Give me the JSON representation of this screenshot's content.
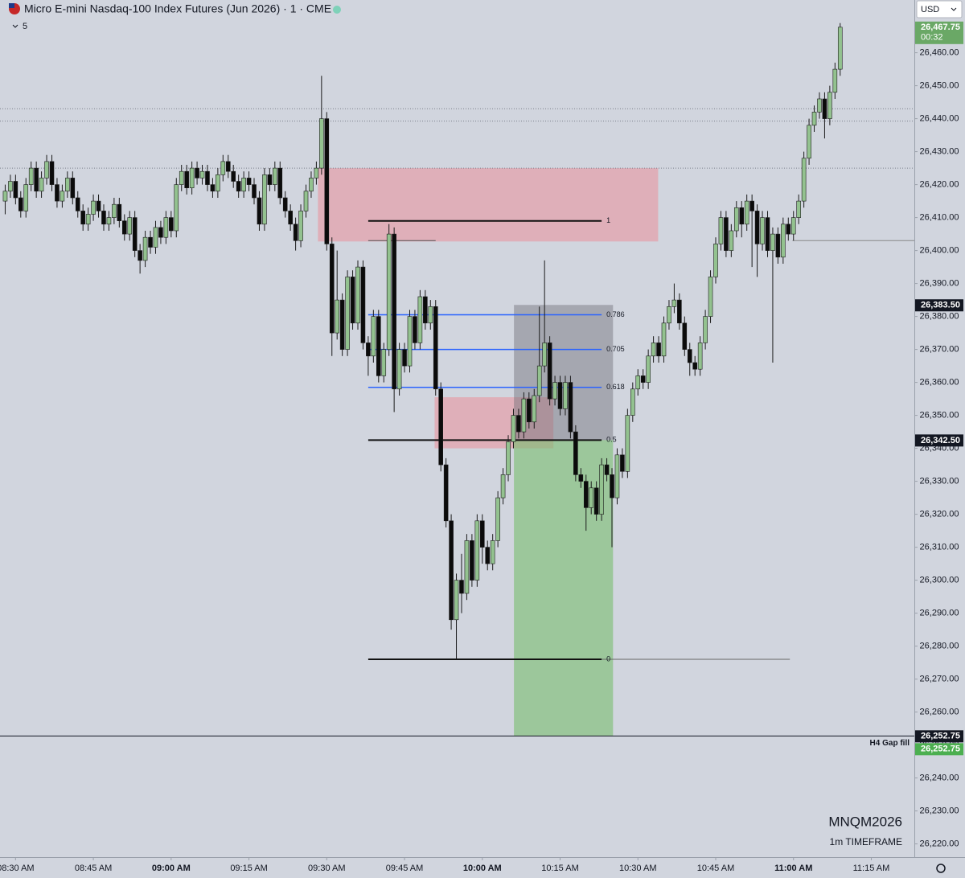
{
  "chart_data": {
    "type": "candlestick",
    "title": "Micro E-mini Nasdaq-100 Index Futures (Jun 2026) · 1 · CME",
    "indicator_count": "5",
    "currency": "USD",
    "symbol": "MNQM2026",
    "timeframe": "1m TIMEFRAME",
    "up_color": "#93c28f",
    "down_color": "#0b0b0b",
    "xlim": [
      507,
      683.3
    ],
    "ylim": [
      26216,
      26476
    ],
    "xticks": [
      {
        "value": 510,
        "label": "08:30 AM"
      },
      {
        "value": 525,
        "label": "08:45 AM"
      },
      {
        "value": 540,
        "label": "09:00 AM"
      },
      {
        "value": 555,
        "label": "09:15 AM"
      },
      {
        "value": 570,
        "label": "09:30 AM"
      },
      {
        "value": 585,
        "label": "09:45 AM"
      },
      {
        "value": 600,
        "label": "10:00 AM"
      },
      {
        "value": 615,
        "label": "10:15 AM"
      },
      {
        "value": 630,
        "label": "10:30 AM"
      },
      {
        "value": 645,
        "label": "10:45 AM"
      },
      {
        "value": 660,
        "label": "11:00 AM"
      },
      {
        "value": 675,
        "label": "11:15 AM"
      }
    ],
    "yticks": [
      {
        "value": 26220,
        "label": "26,220.00"
      },
      {
        "value": 26230,
        "label": "26,230.00"
      },
      {
        "value": 26240,
        "label": "26,240.00"
      },
      {
        "value": 26250,
        "label": "26,250.00"
      },
      {
        "value": 26260,
        "label": "26,260.00"
      },
      {
        "value": 26270,
        "label": "26,270.00"
      },
      {
        "value": 26280,
        "label": "26,280.00"
      },
      {
        "value": 26290,
        "label": "26,290.00"
      },
      {
        "value": 26300,
        "label": "26,300.00"
      },
      {
        "value": 26310,
        "label": "26,310.00"
      },
      {
        "value": 26320,
        "label": "26,320.00"
      },
      {
        "value": 26330,
        "label": "26,330.00"
      },
      {
        "value": 26340,
        "label": "26,340.00"
      },
      {
        "value": 26350,
        "label": "26,350.00"
      },
      {
        "value": 26360,
        "label": "26,360.00"
      },
      {
        "value": 26370,
        "label": "26,370.00"
      },
      {
        "value": 26380,
        "label": "26,380.00"
      },
      {
        "value": 26390,
        "label": "26,390.00"
      },
      {
        "value": 26400,
        "label": "26,400.00"
      },
      {
        "value": 26410,
        "label": "26,410.00"
      },
      {
        "value": 26420,
        "label": "26,420.00"
      },
      {
        "value": 26430,
        "label": "26,430.00"
      },
      {
        "value": 26440,
        "label": "26,440.00"
      },
      {
        "value": 26450,
        "label": "26,450.00"
      },
      {
        "value": 26460,
        "label": "26,460.00"
      }
    ],
    "zones": [
      {
        "top": 26425,
        "bottom": 26402.75,
        "x_start": 568.3,
        "x_end": 633.9,
        "color": "rgba(232,150,160,0.6)"
      },
      {
        "top": 26355.5,
        "bottom": 26340,
        "x_start": 590.8,
        "x_end": 613.7,
        "color": "rgba(232,150,160,0.6)"
      },
      {
        "top": 26383.5,
        "bottom": 26342.5,
        "x_start": 606.1,
        "x_end": 625.2,
        "color": "rgba(110,110,120,0.45)"
      },
      {
        "top": 26342.5,
        "bottom": 26252.75,
        "x_start": 606.1,
        "x_end": 625.2,
        "color": "rgba(120,190,110,0.6)"
      }
    ],
    "dotted_lines": [
      26443,
      26439.25,
      26425
    ],
    "lines": [
      {
        "value": 26403,
        "x_start": 578,
        "x_end": 591,
        "color": "#555"
      },
      {
        "value": 26403,
        "x_start": 659.8,
        "x_end": 683.3,
        "color": "#888"
      },
      {
        "value": 26276,
        "x_start": 623,
        "x_end": 659.3,
        "color": "#666"
      }
    ],
    "fib": {
      "x_start": 578,
      "x_end": 623,
      "levels": [
        {
          "label": "1",
          "value": 26409,
          "color": "#111"
        },
        {
          "label": "0.786",
          "value": 26380.5,
          "color": "#2962ff"
        },
        {
          "label": "0.705",
          "value": 26370,
          "color": "#2962ff"
        },
        {
          "label": "0.618",
          "value": 26358.5,
          "color": "#2962ff"
        },
        {
          "label": "0.5",
          "value": 26342.5,
          "color": "#111"
        },
        {
          "label": "0",
          "value": 26276,
          "color": "#111"
        }
      ]
    },
    "gap_line": {
      "value": 26252.75,
      "label": "H4 Gap fill"
    },
    "price_tags": [
      {
        "value": 26467.75,
        "label": "26,467.75",
        "countdown": "00:32",
        "color": "#6aa866"
      },
      {
        "value": 26383.5,
        "label": "26,383.50",
        "color": "#131722"
      },
      {
        "value": 26342.5,
        "label": "26,342.50",
        "color": "#131722"
      },
      {
        "value": 26252.75,
        "label": "26,252.75",
        "color": "#131722"
      },
      {
        "value": 26252.75,
        "label": "26,252.75",
        "color": "#4caf50"
      }
    ],
    "candles": [
      [
        508,
        26415,
        26420,
        26411,
        26418
      ],
      [
        509,
        26418,
        26423,
        26416,
        26421
      ],
      [
        510,
        26421,
        26423,
        26414,
        26416
      ],
      [
        511,
        26416,
        26418,
        26410,
        26412
      ],
      [
        512,
        26412,
        26422,
        26410,
        26420
      ],
      [
        513,
        26420,
        26427,
        26418,
        26425
      ],
      [
        514,
        26425,
        26427,
        26416,
        26418
      ],
      [
        515,
        26418,
        26424,
        26416,
        26422
      ],
      [
        516,
        26422,
        26429,
        26420,
        26427
      ],
      [
        517,
        26427,
        26429,
        26418,
        26420
      ],
      [
        518,
        26420,
        26422,
        26413,
        26415
      ],
      [
        519,
        26415,
        26420,
        26413,
        26418
      ],
      [
        520,
        26418,
        26424,
        26416,
        26422
      ],
      [
        521,
        26422,
        26424,
        26414,
        26416
      ],
      [
        522,
        26416,
        26418,
        26410,
        26412
      ],
      [
        523,
        26412,
        26414,
        26406,
        26408
      ],
      [
        524,
        26408,
        26413,
        26406,
        26411
      ],
      [
        525,
        26411,
        26417,
        26409,
        26415
      ],
      [
        526,
        26415,
        26417,
        26410,
        26412
      ],
      [
        527,
        26412,
        26414,
        26406,
        26408
      ],
      [
        528,
        26408,
        26412,
        26406,
        26410
      ],
      [
        529,
        26410,
        26416,
        26408,
        26414
      ],
      [
        530,
        26414,
        26416,
        26407,
        26409
      ],
      [
        531,
        26409,
        26411,
        26403,
        26405
      ],
      [
        532,
        26405,
        26412,
        26403,
        26410
      ],
      [
        533,
        26410,
        26412,
        26398,
        26400
      ],
      [
        534,
        26400,
        26402,
        26393,
        26397
      ],
      [
        535,
        26397,
        26406,
        26395,
        26404
      ],
      [
        536,
        26404,
        26406,
        26399,
        26401
      ],
      [
        537,
        26401,
        26409,
        26399,
        26407
      ],
      [
        538,
        26407,
        26409,
        26402,
        26404
      ],
      [
        539,
        26404,
        26412,
        26402,
        26410
      ],
      [
        540,
        26410,
        26412,
        26404,
        26406
      ],
      [
        541,
        26406,
        26422,
        26404,
        26420
      ],
      [
        542,
        26420,
        26426,
        26418,
        26424
      ],
      [
        543,
        26424,
        26426,
        26417,
        26419
      ],
      [
        544,
        26419,
        26427,
        26417,
        26425
      ],
      [
        545,
        26425,
        26427,
        26420,
        26422
      ],
      [
        546,
        26422,
        26426,
        26420,
        26424
      ],
      [
        547,
        26424,
        26426,
        26418,
        26420
      ],
      [
        548,
        26420,
        26422,
        26416,
        26418
      ],
      [
        549,
        26418,
        26425,
        26416,
        26423
      ],
      [
        550,
        26423,
        26429,
        26421,
        26427
      ],
      [
        551,
        26427,
        26429,
        26422,
        26424
      ],
      [
        552,
        26424,
        26426,
        26419,
        26421
      ],
      [
        553,
        26421,
        26423,
        26416,
        26418
      ],
      [
        554,
        26418,
        26424,
        26416,
        26422
      ],
      [
        555,
        26422,
        26424,
        26418,
        26420
      ],
      [
        556,
        26420,
        26422,
        26414,
        26416
      ],
      [
        557,
        26416,
        26418,
        26406,
        26408
      ],
      [
        558,
        26408,
        26425,
        26406,
        26423
      ],
      [
        559,
        26423,
        26425,
        26418,
        26420
      ],
      [
        560,
        26420,
        26427,
        26418,
        26425
      ],
      [
        561,
        26425,
        26427,
        26414,
        26416
      ],
      [
        562,
        26416,
        26418,
        26410,
        26412
      ],
      [
        563,
        26412,
        26414,
        26406,
        26408
      ],
      [
        564,
        26408,
        26410,
        26400,
        26403
      ],
      [
        565,
        26403,
        26414,
        26401,
        26412
      ],
      [
        566,
        26412,
        26420,
        26410,
        26418
      ],
      [
        567,
        26418,
        26424,
        26416,
        26422
      ],
      [
        568,
        26422,
        26427,
        26420,
        26425
      ],
      [
        569,
        26425,
        26453,
        26423,
        26440
      ],
      [
        570,
        26440,
        26442,
        26400,
        26402
      ],
      [
        571,
        26402,
        26404,
        26368,
        26375
      ],
      [
        572,
        26375,
        26400,
        26373,
        26385
      ],
      [
        573,
        26385,
        26387,
        26368,
        26370
      ],
      [
        574,
        26370,
        26394,
        26368,
        26392
      ],
      [
        575,
        26392,
        26394,
        26376,
        26378
      ],
      [
        576,
        26378,
        26397,
        26376,
        26395
      ],
      [
        577,
        26395,
        26397,
        26370,
        26372
      ],
      [
        578,
        26372,
        26374,
        26362,
        26368
      ],
      [
        579,
        26368,
        26382,
        26366,
        26380
      ],
      [
        580,
        26380,
        26382,
        26360,
        26362
      ],
      [
        581,
        26362,
        26372,
        26360,
        26370
      ],
      [
        582,
        26370,
        26408,
        26368,
        26405
      ],
      [
        583,
        26405,
        26407,
        26351,
        26358
      ],
      [
        584,
        26358,
        26372,
        26356,
        26370
      ],
      [
        585,
        26370,
        26372,
        26363,
        26365
      ],
      [
        586,
        26365,
        26382,
        26363,
        26380
      ],
      [
        587,
        26380,
        26382,
        26370,
        26372
      ],
      [
        588,
        26372,
        26388,
        26370,
        26386
      ],
      [
        589,
        26386,
        26388,
        26376,
        26378
      ],
      [
        590,
        26378,
        26385,
        26376,
        26383
      ],
      [
        591,
        26383,
        26385,
        26356,
        26358
      ],
      [
        592,
        26358,
        26360,
        26333,
        26335
      ],
      [
        593,
        26335,
        26337,
        26316,
        26318
      ],
      [
        594,
        26318,
        26320,
        26285,
        26288
      ],
      [
        595,
        26288,
        26302,
        26276,
        26300
      ],
      [
        596,
        26300,
        26308,
        26290,
        26296
      ],
      [
        597,
        26296,
        26314,
        26294,
        26312
      ],
      [
        598,
        26312,
        26314,
        26298,
        26300
      ],
      [
        599,
        26300,
        26320,
        26298,
        26318
      ],
      [
        600,
        26318,
        26320,
        26305,
        26310
      ],
      [
        601,
        26310,
        26312,
        26303,
        26305
      ],
      [
        602,
        26305,
        26314,
        26303,
        26312
      ],
      [
        603,
        26312,
        26327,
        26310,
        26325
      ],
      [
        604,
        26325,
        26334,
        26323,
        26332
      ],
      [
        605,
        26332,
        26344,
        26330,
        26342
      ],
      [
        606,
        26342,
        26352,
        26340,
        26350
      ],
      [
        607,
        26350,
        26352,
        26343,
        26345
      ],
      [
        608,
        26345,
        26357,
        26343,
        26355
      ],
      [
        609,
        26355,
        26357,
        26346,
        26348
      ],
      [
        610,
        26348,
        26358,
        26346,
        26356
      ],
      [
        611,
        26356,
        26383,
        26354,
        26365
      ],
      [
        612,
        26365,
        26397,
        26363,
        26372
      ],
      [
        613,
        26372,
        26374,
        26353,
        26355
      ],
      [
        614,
        26355,
        26362,
        26353,
        26360
      ],
      [
        615,
        26360,
        26362,
        26350,
        26352
      ],
      [
        616,
        26352,
        26362,
        26350,
        26360
      ],
      [
        617,
        26360,
        26362,
        26343,
        26345
      ],
      [
        618,
        26345,
        26347,
        26330,
        26332
      ],
      [
        619,
        26332,
        26334,
        26328,
        26330
      ],
      [
        620,
        26330,
        26332,
        26315,
        26322
      ],
      [
        621,
        26322,
        26330,
        26320,
        26328
      ],
      [
        622,
        26328,
        26330,
        26318,
        26320
      ],
      [
        623,
        26320,
        26337,
        26318,
        26335
      ],
      [
        624,
        26335,
        26337,
        26330,
        26332
      ],
      [
        625,
        26332,
        26334,
        26310,
        26325
      ],
      [
        626,
        26325,
        26340,
        26323,
        26338
      ],
      [
        627,
        26338,
        26340,
        26331,
        26333
      ],
      [
        628,
        26333,
        26352,
        26331,
        26350
      ],
      [
        629,
        26350,
        26360,
        26348,
        26358
      ],
      [
        630,
        26358,
        26364,
        26356,
        26362
      ],
      [
        631,
        26362,
        26364,
        26358,
        26360
      ],
      [
        632,
        26360,
        26370,
        26358,
        26368
      ],
      [
        633,
        26368,
        26374,
        26366,
        26372
      ],
      [
        634,
        26372,
        26374,
        26366,
        26368
      ],
      [
        635,
        26368,
        26380,
        26366,
        26378
      ],
      [
        636,
        26378,
        26385,
        26376,
        26383
      ],
      [
        637,
        26383,
        26390,
        26381,
        26385
      ],
      [
        638,
        26385,
        26387,
        26376,
        26378
      ],
      [
        639,
        26378,
        26380,
        26368,
        26370
      ],
      [
        640,
        26370,
        26372,
        26362,
        26366
      ],
      [
        641,
        26366,
        26368,
        26362,
        26364
      ],
      [
        642,
        26364,
        26374,
        26362,
        26372
      ],
      [
        643,
        26372,
        26382,
        26370,
        26380
      ],
      [
        644,
        26380,
        26394,
        26378,
        26392
      ],
      [
        645,
        26392,
        26404,
        26390,
        26402
      ],
      [
        646,
        26402,
        26412,
        26400,
        26410
      ],
      [
        647,
        26410,
        26412,
        26398,
        26400
      ],
      [
        648,
        26400,
        26408,
        26398,
        26406
      ],
      [
        649,
        26406,
        26415,
        26404,
        26413
      ],
      [
        650,
        26413,
        26415,
        26404,
        26408
      ],
      [
        651,
        26408,
        26417,
        26406,
        26415
      ],
      [
        652,
        26415,
        26417,
        26395,
        26412
      ],
      [
        653,
        26412,
        26414,
        26392,
        26402
      ],
      [
        654,
        26402,
        26412,
        26400,
        26410
      ],
      [
        655,
        26410,
        26412,
        26398,
        26400
      ],
      [
        656,
        26400,
        26407,
        26366,
        26405
      ],
      [
        657,
        26405,
        26407,
        26396,
        26398
      ],
      [
        658,
        26398,
        26410,
        26396,
        26408
      ],
      [
        659,
        26408,
        26410,
        26403,
        26405
      ],
      [
        660,
        26405,
        26412,
        26403,
        26410
      ],
      [
        661,
        26410,
        26417,
        26408,
        26415
      ],
      [
        662,
        26415,
        26430,
        26413,
        26428
      ],
      [
        663,
        26428,
        26440,
        26426,
        26438
      ],
      [
        664,
        26438,
        26444,
        26436,
        26442
      ],
      [
        665,
        26442,
        26448,
        26440,
        26446
      ],
      [
        666,
        26446,
        26448,
        26434,
        26440
      ],
      [
        667,
        26440,
        26450,
        26438,
        26448
      ],
      [
        668,
        26448,
        26457,
        26446,
        26455
      ],
      [
        669,
        26455,
        26469,
        26453,
        26467.75
      ]
    ]
  }
}
